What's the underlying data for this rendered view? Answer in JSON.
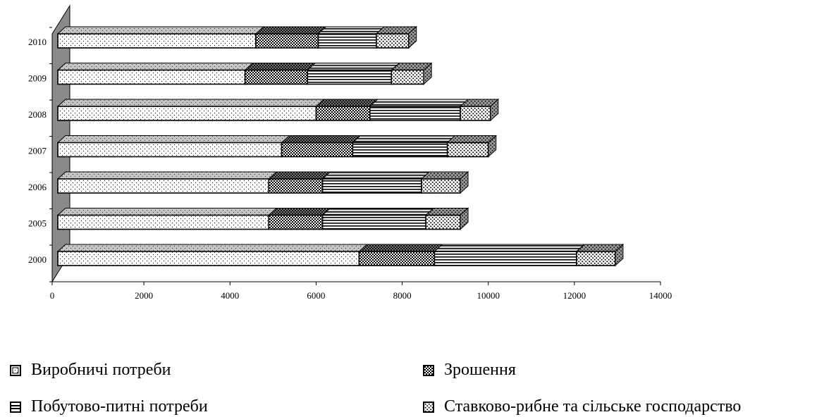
{
  "chart_data": {
    "type": "bar",
    "orientation": "horizontal",
    "stacked": true,
    "style": "3d",
    "categories": [
      "2010",
      "2009",
      "2008",
      "2007",
      "2006",
      "2005",
      "2000"
    ],
    "series": [
      {
        "name": "Виробничі потреби",
        "pattern": "light-dots",
        "values": [
          4600,
          4350,
          6000,
          5200,
          4900,
          4900,
          7000
        ]
      },
      {
        "name": "Зрошення",
        "pattern": "dense-checker",
        "values": [
          1450,
          1450,
          1250,
          1650,
          1250,
          1250,
          1750
        ]
      },
      {
        "name": "Побутово-питні потреби",
        "pattern": "horizontal-lines",
        "values": [
          1350,
          1950,
          2100,
          2200,
          2300,
          2400,
          3300
        ]
      },
      {
        "name": "Ставково-рибне та сільське господарство",
        "pattern": "medium-dots",
        "values": [
          750,
          750,
          700,
          950,
          900,
          800,
          900
        ]
      }
    ],
    "xlim": [
      0,
      14000
    ],
    "xticks": [
      "0",
      "2000",
      "4000",
      "6000",
      "8000",
      "10000",
      "12000",
      "14000"
    ],
    "xlabel": "",
    "ylabel": "",
    "title": "",
    "grid": false,
    "legend_position": "bottom"
  },
  "colors": {
    "fill": "#ffffff",
    "ink": "#000000",
    "wall": "#8a8a8a",
    "top_face": "#bdbdbd"
  }
}
